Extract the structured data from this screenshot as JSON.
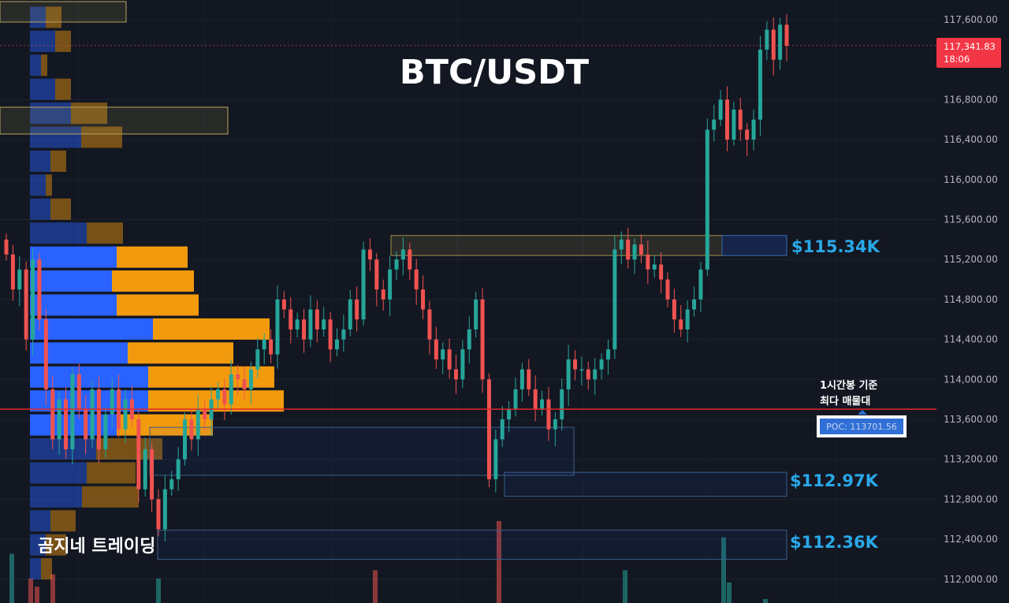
{
  "chart_data": {
    "type": "candlestick",
    "title": "BTC/USDT",
    "watermark": "곰지네 트레이딩",
    "y_axis": {
      "ticks": [
        "117,600.00",
        "116,800.00",
        "116,400.00",
        "116,000.00",
        "115,600.00",
        "115,200.00",
        "114,800.00",
        "114,400.00",
        "114,000.00",
        "113,600.00",
        "113,200.00",
        "112,800.00",
        "112,400.00",
        "112,000.00"
      ],
      "range": [
        111800,
        117800
      ]
    },
    "last_price": {
      "value": 117341.83,
      "label": "117,341.83",
      "countdown": "18:06"
    },
    "poc": {
      "value": 113701.56,
      "label": "POC: 113701.56",
      "annotation_line1": "1시간봉 기준",
      "annotation_line2": "최다 매물대"
    },
    "zones": [
      {
        "label": "$115.34K",
        "low": 115240,
        "high": 115440
      },
      {
        "label": "$112.97K",
        "low": 112870,
        "high": 113070
      },
      {
        "label": "$112.36K",
        "low": 112260,
        "high": 112460
      }
    ],
    "volume_profile": [
      {
        "price": 117620,
        "buy": 20,
        "sell": 20
      },
      {
        "price": 117380,
        "buy": 32,
        "sell": 20
      },
      {
        "price": 117140,
        "buy": 14,
        "sell": 8
      },
      {
        "price": 116900,
        "buy": 32,
        "sell": 20
      },
      {
        "price": 116660,
        "buy": 52,
        "sell": 46
      },
      {
        "price": 116420,
        "buy": 65,
        "sell": 52
      },
      {
        "price": 116180,
        "buy": 26,
        "sell": 20
      },
      {
        "price": 115940,
        "buy": 20,
        "sell": 8
      },
      {
        "price": 115700,
        "buy": 26,
        "sell": 26
      },
      {
        "price": 115460,
        "buy": 72,
        "sell": 46
      },
      {
        "price": 115220,
        "buy": 110,
        "sell": 90
      },
      {
        "price": 114980,
        "buy": 104,
        "sell": 104
      },
      {
        "price": 114740,
        "buy": 110,
        "sell": 104
      },
      {
        "price": 114500,
        "buy": 156,
        "sell": 148
      },
      {
        "price": 114260,
        "buy": 124,
        "sell": 134
      },
      {
        "price": 114020,
        "buy": 150,
        "sell": 160
      },
      {
        "price": 113780,
        "buy": 150,
        "sell": 172
      },
      {
        "price": 113540,
        "buy": 110,
        "sell": 122
      },
      {
        "price": 113300,
        "buy": 84,
        "sell": 84
      },
      {
        "price": 113060,
        "buy": 72,
        "sell": 62
      },
      {
        "price": 112820,
        "buy": 66,
        "sell": 72
      },
      {
        "price": 112580,
        "buy": 26,
        "sell": 32
      },
      {
        "price": 112340,
        "buy": 20,
        "sell": 26
      },
      {
        "price": 112100,
        "buy": 14,
        "sell": 14
      }
    ],
    "close_path": [
      115250,
      114900,
      115100,
      114400,
      115200,
      114600,
      113900,
      113400,
      113800,
      113300,
      114050,
      113700,
      113400,
      113900,
      113300,
      113650,
      113900,
      113500,
      113800,
      113600,
      112900,
      113300,
      112800,
      112500,
      112900,
      113000,
      113200,
      113600,
      113400,
      113700,
      113600,
      113800,
      113900,
      113750,
      114050,
      114000,
      113900,
      114100,
      114300,
      114400,
      114250,
      114800,
      114700,
      114500,
      114600,
      114400,
      114700,
      114500,
      114600,
      114300,
      114400,
      114500,
      114800,
      114600,
      115300,
      115200,
      114900,
      114800,
      115100,
      115200,
      115300,
      115100,
      114900,
      114700,
      114400,
      114200,
      114300,
      114100,
      114000,
      114300,
      114500,
      114800,
      114000,
      113000,
      113400,
      113600,
      113700,
      113900,
      114100,
      113900,
      113700,
      113800,
      113500,
      113600,
      113900,
      114200,
      114100,
      114100,
      114000,
      114100,
      114200,
      114300,
      115300,
      115400,
      115200,
      115350,
      115250,
      115100,
      115150,
      115000,
      114800,
      114600,
      114500,
      114700,
      114800,
      115100,
      116500,
      116600,
      116800,
      116400,
      116700,
      116500,
      116400,
      116600,
      117300,
      117500,
      117200,
      117550,
      117340
    ],
    "volume_bars": [
      {
        "x": 12,
        "v": 0.6,
        "up": true
      },
      {
        "x": 36,
        "v": 0.3,
        "up": false
      },
      {
        "x": 44,
        "v": 0.2,
        "up": false
      },
      {
        "x": 64,
        "v": 0.35,
        "up": false
      },
      {
        "x": 198,
        "v": 0.3,
        "up": true
      },
      {
        "x": 473,
        "v": 0.4,
        "up": false
      },
      {
        "x": 630,
        "v": 1.0,
        "up": false
      },
      {
        "x": 790,
        "v": 0.4,
        "up": true
      },
      {
        "x": 915,
        "v": 0.8,
        "up": true
      },
      {
        "x": 922,
        "v": 0.25,
        "up": true
      },
      {
        "x": 968,
        "v": 0.05,
        "up": true
      }
    ]
  }
}
